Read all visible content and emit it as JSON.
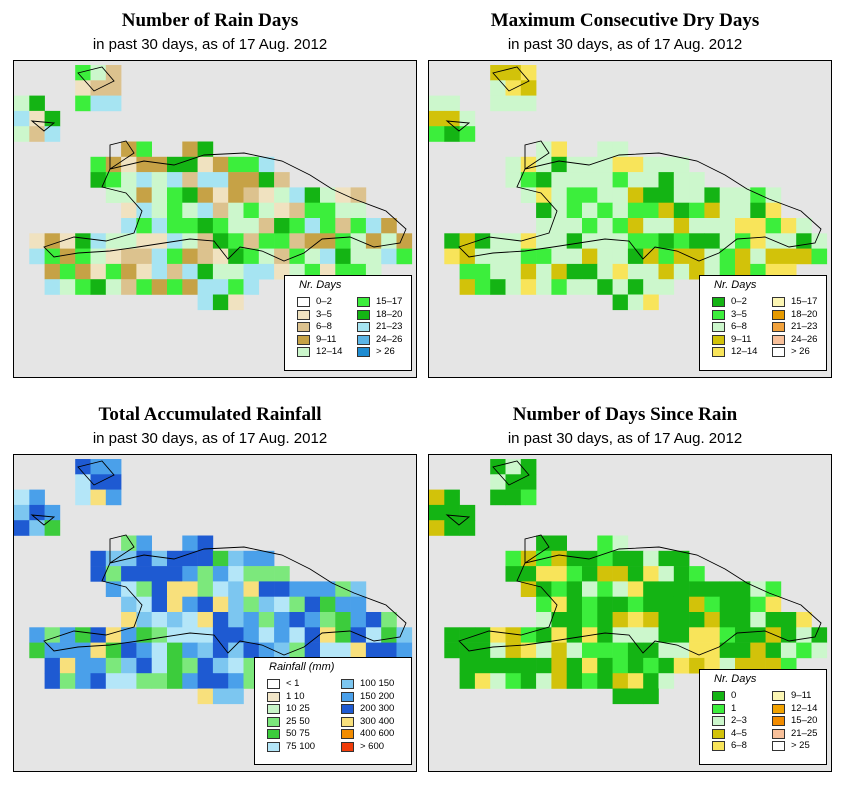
{
  "panels": [
    {
      "id": "rain-days",
      "title": "Number of Rain Days",
      "subtitle": "in past 30 days, as of  17 Aug. 2012",
      "legend_title": "Nr. Days",
      "legend_items": [
        {
          "label": "0–2",
          "color": "#ffffff"
        },
        {
          "label": "3–5",
          "color": "#f0e2c0"
        },
        {
          "label": "6–8",
          "color": "#dcc28e"
        },
        {
          "label": "9–11",
          "color": "#c6a246"
        },
        {
          "label": "12–14",
          "color": "#ccf7cc"
        },
        {
          "label": "15–17",
          "color": "#3cee3c"
        },
        {
          "label": "18–20",
          "color": "#14b414"
        },
        {
          "label": "21–23",
          "color": "#a6e4f2"
        },
        {
          "label": "24–26",
          "color": "#5ab4e6"
        },
        {
          "label": "> 26",
          "color": "#1e8cd2"
        }
      ]
    },
    {
      "id": "dry-days",
      "title": "Maximum Consecutive Dry Days",
      "subtitle": "in past 30 days, as of  17 Aug. 2012",
      "legend_title": "Nr. Days",
      "legend_items": [
        {
          "label": "0–2",
          "color": "#14b414"
        },
        {
          "label": "3–5",
          "color": "#3cee3c"
        },
        {
          "label": "6–8",
          "color": "#ccf7cc"
        },
        {
          "label": "9–11",
          "color": "#d2c20a"
        },
        {
          "label": "12–14",
          "color": "#f8e45a"
        },
        {
          "label": "15–17",
          "color": "#fcf6b4"
        },
        {
          "label": "18–20",
          "color": "#e69a00"
        },
        {
          "label": "21–23",
          "color": "#f2a23c"
        },
        {
          "label": "24–26",
          "color": "#f8c09a"
        },
        {
          "label": "> 26",
          "color": "#ffffff"
        }
      ]
    },
    {
      "id": "rainfall",
      "title": "Total Accumulated Rainfall",
      "subtitle": "in past 30 days, as of  17 Aug. 2012",
      "legend_title": "Rainfall (mm)",
      "legend_items": [
        {
          "label": "< 1",
          "color": "#ffffff"
        },
        {
          "label": "1   10",
          "color": "#f2e6c8"
        },
        {
          "label": "10   25",
          "color": "#c8f5c8"
        },
        {
          "label": "25   50",
          "color": "#7ce87c"
        },
        {
          "label": "50   75",
          "color": "#3ccc3c"
        },
        {
          "label": "75  100",
          "color": "#b4e6f8"
        },
        {
          "label": "100  150",
          "color": "#7cc6f0"
        },
        {
          "label": "150  200",
          "color": "#4aa0ea"
        },
        {
          "label": "200  300",
          "color": "#1e5ad2"
        },
        {
          "label": "300  400",
          "color": "#f8e07c"
        },
        {
          "label": "400  600",
          "color": "#f28c00"
        },
        {
          "label": "> 600",
          "color": "#f03c0a"
        }
      ]
    },
    {
      "id": "since-rain",
      "title": "Number of Days Since Rain",
      "subtitle": "in past 30 days, as of  17 Aug. 2012",
      "legend_title": "Nr. Days",
      "legend_items": [
        {
          "label": "0",
          "color": "#14b414"
        },
        {
          "label": "1",
          "color": "#3cee3c"
        },
        {
          "label": "2–3",
          "color": "#ccf7cc"
        },
        {
          "label": "4–5",
          "color": "#d2c20a"
        },
        {
          "label": "6–8",
          "color": "#f8e45a"
        },
        {
          "label": "9–11",
          "color": "#fcf6b4"
        },
        {
          "label": "12–14",
          "color": "#f2a200"
        },
        {
          "label": "15–20",
          "color": "#f28c00"
        },
        {
          "label": "21–25",
          "color": "#f8c09a"
        },
        {
          "label": "> 25",
          "color": "#ffffff"
        }
      ]
    }
  ]
}
